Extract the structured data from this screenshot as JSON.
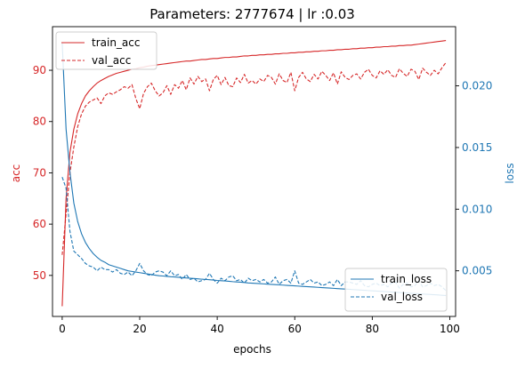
{
  "chart_data": {
    "type": "line",
    "title": "Parameters: 2777674 | lr :0.03",
    "xlabel": "epochs",
    "ylabel_left": "acc",
    "ylabel_right": "loss",
    "xlim": [
      -2.5,
      101.5
    ],
    "ylim_left": [
      42.0,
      98.5
    ],
    "ylim_right": [
      0.0013,
      0.0248
    ],
    "x_ticks": [
      0,
      20,
      40,
      60,
      80,
      100
    ],
    "y_ticks_left": [
      50,
      60,
      70,
      80,
      90
    ],
    "y_ticks_right": [
      0.005,
      0.01,
      0.015,
      0.02
    ],
    "y_tick_labels_right": [
      "0.005",
      "0.010",
      "0.015",
      "0.020"
    ],
    "legend_left_position": "upper-left",
    "legend_right_position": "lower-right",
    "grid": false,
    "colors": {
      "acc": "#d62728",
      "loss": "#1f77b4"
    },
    "x": [
      0,
      1,
      2,
      3,
      4,
      5,
      6,
      7,
      8,
      9,
      10,
      11,
      12,
      13,
      14,
      15,
      16,
      17,
      18,
      19,
      20,
      21,
      22,
      23,
      24,
      25,
      26,
      27,
      28,
      29,
      30,
      31,
      32,
      33,
      34,
      35,
      36,
      37,
      38,
      39,
      40,
      41,
      42,
      43,
      44,
      45,
      46,
      47,
      48,
      49,
      50,
      51,
      52,
      53,
      54,
      55,
      56,
      57,
      58,
      59,
      60,
      61,
      62,
      63,
      64,
      65,
      66,
      67,
      68,
      69,
      70,
      71,
      72,
      73,
      74,
      75,
      76,
      77,
      78,
      79,
      80,
      81,
      82,
      83,
      84,
      85,
      86,
      87,
      88,
      89,
      90,
      91,
      92,
      93,
      94,
      95,
      96,
      97,
      98,
      99
    ],
    "series": [
      {
        "name": "train_acc",
        "axis": "left",
        "style": "solid",
        "values": [
          44.0,
          65.0,
          74.0,
          78.5,
          81.5,
          83.5,
          85.0,
          86.0,
          86.8,
          87.5,
          88.0,
          88.4,
          88.8,
          89.1,
          89.4,
          89.6,
          89.8,
          90.0,
          90.2,
          90.3,
          90.5,
          90.6,
          90.8,
          90.9,
          91.0,
          91.1,
          91.2,
          91.3,
          91.4,
          91.5,
          91.6,
          91.7,
          91.8,
          91.8,
          91.9,
          92.0,
          92.1,
          92.1,
          92.2,
          92.3,
          92.3,
          92.4,
          92.5,
          92.5,
          92.6,
          92.6,
          92.7,
          92.8,
          92.8,
          92.9,
          92.9,
          93.0,
          93.0,
          93.1,
          93.1,
          93.2,
          93.2,
          93.3,
          93.3,
          93.4,
          93.4,
          93.5,
          93.5,
          93.6,
          93.6,
          93.7,
          93.7,
          93.8,
          93.8,
          93.9,
          93.9,
          94.0,
          94.0,
          94.1,
          94.1,
          94.2,
          94.2,
          94.3,
          94.3,
          94.4,
          94.4,
          94.5,
          94.5,
          94.6,
          94.6,
          94.7,
          94.7,
          94.8,
          94.8,
          94.9,
          94.9,
          95.0,
          95.1,
          95.2,
          95.3,
          95.4,
          95.5,
          95.6,
          95.7,
          95.8
        ]
      },
      {
        "name": "val_acc",
        "axis": "left",
        "style": "dashed",
        "values": [
          54.0,
          62.0,
          70.0,
          75.0,
          79.0,
          81.5,
          83.0,
          83.8,
          84.2,
          84.6,
          83.5,
          85.0,
          85.6,
          85.3,
          85.8,
          86.2,
          86.8,
          86.5,
          87.2,
          84.5,
          82.5,
          85.5,
          86.8,
          87.5,
          86.0,
          85.0,
          85.6,
          87.0,
          85.3,
          87.2,
          86.5,
          88.0,
          86.2,
          88.5,
          87.3,
          88.8,
          87.8,
          88.3,
          86.0,
          88.2,
          89.0,
          87.2,
          88.6,
          87.0,
          86.8,
          88.5,
          87.6,
          89.2,
          87.5,
          88.0,
          87.3,
          88.3,
          87.8,
          89.0,
          88.6,
          87.3,
          89.3,
          88.0,
          87.6,
          89.6,
          86.0,
          88.6,
          89.6,
          88.3,
          87.8,
          89.2,
          88.3,
          89.8,
          89.0,
          88.0,
          89.5,
          87.3,
          89.7,
          88.6,
          88.2,
          89.0,
          89.3,
          88.3,
          89.6,
          90.2,
          89.0,
          88.5,
          89.9,
          89.2,
          90.1,
          89.0,
          88.6,
          90.3,
          89.4,
          88.8,
          90.2,
          89.8,
          88.2,
          90.4,
          89.6,
          89.0,
          90.0,
          89.3,
          90.5,
          91.5
        ]
      },
      {
        "name": "train_loss",
        "axis": "right",
        "style": "solid",
        "values": [
          0.0235,
          0.0165,
          0.013,
          0.0105,
          0.009,
          0.008,
          0.0073,
          0.0068,
          0.0064,
          0.0061,
          0.00585,
          0.0057,
          0.0055,
          0.0054,
          0.0053,
          0.0052,
          0.0051,
          0.005,
          0.00495,
          0.0049,
          0.00485,
          0.0048,
          0.00475,
          0.0047,
          0.00465,
          0.0046,
          0.00458,
          0.00455,
          0.00452,
          0.0045,
          0.00448,
          0.00445,
          0.00442,
          0.0044,
          0.00438,
          0.00435,
          0.00432,
          0.0043,
          0.00428,
          0.00425,
          0.00422,
          0.0042,
          0.00418,
          0.00415,
          0.00412,
          0.0041,
          0.00408,
          0.00405,
          0.00402,
          0.004,
          0.00398,
          0.00396,
          0.00394,
          0.00392,
          0.0039,
          0.00388,
          0.00386,
          0.00384,
          0.00382,
          0.0038,
          0.00378,
          0.00376,
          0.00374,
          0.00372,
          0.0037,
          0.00368,
          0.00366,
          0.00364,
          0.00362,
          0.0036,
          0.00358,
          0.00356,
          0.00354,
          0.00352,
          0.0035,
          0.00348,
          0.00346,
          0.00344,
          0.00342,
          0.0034,
          0.00338,
          0.00336,
          0.00334,
          0.00332,
          0.0033,
          0.00328,
          0.00326,
          0.00324,
          0.00322,
          0.0032,
          0.00318,
          0.00316,
          0.00314,
          0.00312,
          0.0031,
          0.00308,
          0.00306,
          0.00304,
          0.00302,
          0.003
        ]
      },
      {
        "name": "val_loss",
        "axis": "right",
        "style": "dashed",
        "values": [
          0.0126,
          0.0117,
          0.0082,
          0.0066,
          0.0063,
          0.006,
          0.0056,
          0.0054,
          0.0053,
          0.005,
          0.0053,
          0.0051,
          0.0051,
          0.0049,
          0.0051,
          0.0048,
          0.0047,
          0.0049,
          0.0046,
          0.005,
          0.0056,
          0.005,
          0.0047,
          0.0046,
          0.0049,
          0.005,
          0.0049,
          0.0046,
          0.005,
          0.0046,
          0.0047,
          0.0043,
          0.0047,
          0.0043,
          0.0044,
          0.0041,
          0.0042,
          0.0043,
          0.0048,
          0.0043,
          0.004,
          0.0044,
          0.0042,
          0.0045,
          0.0046,
          0.0042,
          0.0043,
          0.004,
          0.0044,
          0.0042,
          0.0043,
          0.0041,
          0.0043,
          0.004,
          0.0041,
          0.0045,
          0.0039,
          0.0042,
          0.0043,
          0.004,
          0.005,
          0.004,
          0.0039,
          0.0041,
          0.0043,
          0.004,
          0.0041,
          0.0038,
          0.0039,
          0.0041,
          0.0038,
          0.0043,
          0.0038,
          0.0041,
          0.0041,
          0.004,
          0.0039,
          0.0042,
          0.0038,
          0.0037,
          0.0039,
          0.004,
          0.0038,
          0.0039,
          0.0037,
          0.004,
          0.0041,
          0.0036,
          0.0039,
          0.004,
          0.0037,
          0.0038,
          0.0042,
          0.0037,
          0.0038,
          0.004,
          0.0038,
          0.0039,
          0.0037,
          0.0034
        ]
      }
    ]
  }
}
